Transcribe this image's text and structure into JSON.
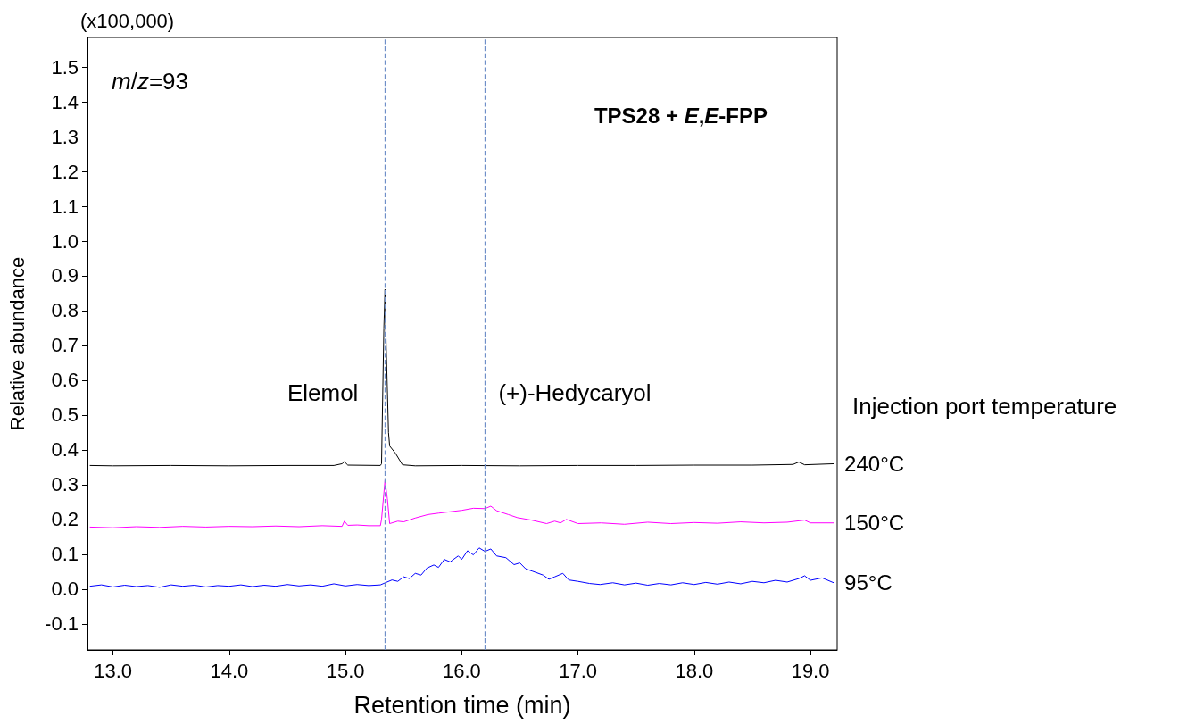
{
  "chart_data": {
    "type": "line",
    "title": "TPS28 + E,E-FPP",
    "xlabel": "Retention time (min)",
    "ylabel": "Relative abundance",
    "xlim": [
      12.78,
      19.23
    ],
    "ylim": [
      -0.175,
      1.585
    ],
    "xticks": [
      {
        "value": 13,
        "label": "13.0"
      },
      {
        "value": 14,
        "label": "14.0"
      },
      {
        "value": 15,
        "label": "15.0"
      },
      {
        "value": 16,
        "label": "16.0"
      },
      {
        "value": 17,
        "label": "17.0"
      },
      {
        "value": 18,
        "label": "18.0"
      },
      {
        "value": 19,
        "label": "19.0"
      }
    ],
    "yticks": [
      -0.1,
      {
        "value": 0,
        "label": "0.0"
      },
      0.1,
      0.2,
      0.3,
      0.4,
      0.5,
      0.6,
      0.7,
      0.8,
      0.9,
      {
        "value": 1,
        "label": "1.0"
      },
      1.1,
      1.2,
      1.3,
      1.4,
      1.5
    ],
    "grid": false,
    "legend": false,
    "marker": "none",
    "line_style": "solid",
    "series": [
      {
        "name": "240°C",
        "color": "#000000",
        "x": [
          12.8,
          13.0,
          13.5,
          14.0,
          14.5,
          14.9,
          14.97,
          14.99,
          15.02,
          15.3,
          15.31,
          15.33,
          15.34,
          15.35,
          15.37,
          15.38,
          15.43,
          15.49,
          15.6,
          16.0,
          16.5,
          17.0,
          17.5,
          18.0,
          18.5,
          18.85,
          18.9,
          18.95,
          19.2
        ],
        "values": [
          0.355,
          0.354,
          0.355,
          0.354,
          0.355,
          0.355,
          0.36,
          0.366,
          0.356,
          0.355,
          0.36,
          0.75,
          0.861,
          0.7,
          0.45,
          0.411,
          0.39,
          0.357,
          0.354,
          0.355,
          0.354,
          0.355,
          0.355,
          0.356,
          0.356,
          0.358,
          0.365,
          0.357,
          0.36
        ]
      },
      {
        "name": "150°C",
        "color": "#ff00ff",
        "x": [
          12.8,
          13.0,
          13.2,
          13.4,
          13.6,
          13.8,
          14.0,
          14.2,
          14.4,
          14.6,
          14.8,
          14.97,
          14.99,
          15.02,
          15.1,
          15.2,
          15.3,
          15.31,
          15.34,
          15.36,
          15.38,
          15.45,
          15.5,
          15.6,
          15.71,
          15.8,
          15.9,
          16.0,
          16.1,
          16.2,
          16.25,
          16.3,
          16.4,
          16.48,
          16.6,
          16.73,
          16.8,
          16.85,
          16.9,
          17.0,
          17.2,
          17.4,
          17.6,
          17.8,
          18.0,
          18.2,
          18.4,
          18.6,
          18.8,
          18.95,
          19.0,
          19.2
        ],
        "values": [
          0.178,
          0.176,
          0.179,
          0.177,
          0.18,
          0.178,
          0.18,
          0.179,
          0.181,
          0.179,
          0.182,
          0.18,
          0.195,
          0.183,
          0.184,
          0.182,
          0.182,
          0.2,
          0.313,
          0.26,
          0.188,
          0.195,
          0.193,
          0.204,
          0.214,
          0.218,
          0.222,
          0.226,
          0.232,
          0.231,
          0.238,
          0.225,
          0.214,
          0.205,
          0.198,
          0.188,
          0.195,
          0.19,
          0.2,
          0.188,
          0.19,
          0.186,
          0.192,
          0.188,
          0.191,
          0.189,
          0.193,
          0.19,
          0.192,
          0.198,
          0.19,
          0.19
        ]
      },
      {
        "name": "95°C",
        "color": "#0000ff",
        "x": [
          12.8,
          12.9,
          13.0,
          13.1,
          13.2,
          13.3,
          13.4,
          13.5,
          13.6,
          13.7,
          13.8,
          13.9,
          14.0,
          14.1,
          14.2,
          14.3,
          14.4,
          14.5,
          14.6,
          14.7,
          14.8,
          14.9,
          15.0,
          15.1,
          15.2,
          15.3,
          15.4,
          15.45,
          15.5,
          15.55,
          15.6,
          15.65,
          15.7,
          15.76,
          15.8,
          15.85,
          15.9,
          15.97,
          16.0,
          16.05,
          16.1,
          16.15,
          16.2,
          16.25,
          16.3,
          16.38,
          16.45,
          16.5,
          16.55,
          16.61,
          16.7,
          16.75,
          16.8,
          16.87,
          16.92,
          17.0,
          17.1,
          17.19,
          17.3,
          17.4,
          17.5,
          17.6,
          17.7,
          17.8,
          17.9,
          18.0,
          18.1,
          18.2,
          18.3,
          18.4,
          18.5,
          18.6,
          18.7,
          18.8,
          18.9,
          18.95,
          19.0,
          19.1,
          19.2
        ],
        "values": [
          0.008,
          0.012,
          0.006,
          0.011,
          0.007,
          0.01,
          0.005,
          0.012,
          0.008,
          0.011,
          0.006,
          0.01,
          0.008,
          0.012,
          0.007,
          0.011,
          0.008,
          0.013,
          0.009,
          0.012,
          0.008,
          0.015,
          0.009,
          0.013,
          0.01,
          0.012,
          0.026,
          0.022,
          0.035,
          0.03,
          0.045,
          0.04,
          0.06,
          0.069,
          0.062,
          0.085,
          0.078,
          0.095,
          0.085,
          0.11,
          0.098,
          0.118,
          0.108,
          0.115,
          0.095,
          0.09,
          0.07,
          0.075,
          0.058,
          0.051,
          0.04,
          0.028,
          0.035,
          0.045,
          0.026,
          0.022,
          0.016,
          0.013,
          0.018,
          0.012,
          0.017,
          0.011,
          0.016,
          0.012,
          0.018,
          0.013,
          0.019,
          0.014,
          0.02,
          0.015,
          0.022,
          0.018,
          0.025,
          0.02,
          0.03,
          0.038,
          0.025,
          0.032,
          0.018
        ]
      }
    ],
    "ref_lines": [
      {
        "axis": "x",
        "value": 15.34,
        "color": "#6f8fc8",
        "line_style": "dashed"
      },
      {
        "axis": "x",
        "value": 16.2,
        "color": "#6f8fc8",
        "line_style": "dashed"
      }
    ],
    "annotations": [
      "(x100,000)",
      "m/z=93",
      "Injection port temperature",
      {
        "text": "Elemol",
        "x": 15.34,
        "y": 0.565
      },
      {
        "text": "(+)-Hedycaryol",
        "x": 16.2,
        "y": 0.565
      }
    ]
  }
}
